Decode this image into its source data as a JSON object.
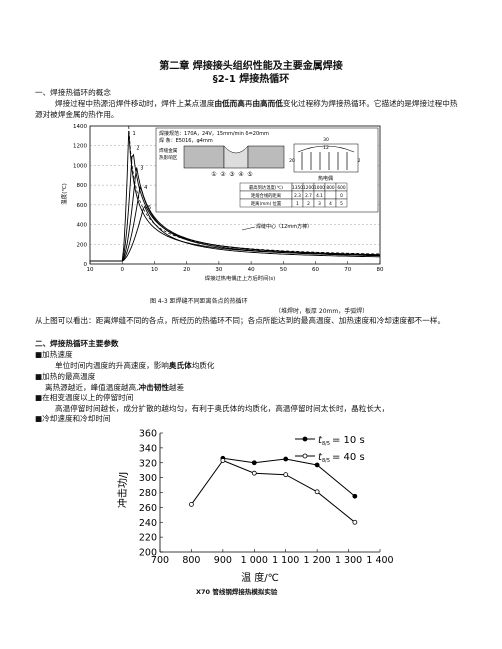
{
  "doc": {
    "chapter_title": "第二章 焊接接头组织性能及主要金属焊接",
    "section_title": "§2-1 焊接热循环",
    "h1": "一、焊接热循环的概念",
    "p1_pre": "焊接过程中热源沿焊件移动时，焊件上某点温度",
    "p1_b1": "由低而高",
    "p1_mid": "再",
    "p1_b2": "由高而低",
    "p1_post": "变化过程称为焊接热循环。它描述的是焊接过程中热源对被焊金属的热作用。",
    "fig1_caption": "图 4-3  距焊缝不同距离各点的热循环",
    "fig1_subcaption": "（堆焊时，板厚 20mm，手弧焊）",
    "p2": "从上图可以看出：距离焊缝不同的各点，所经历的热循环不同；各点所能达到的最高温度、加热速度和冷却速度都不一样。",
    "h2": "二、焊接热循环主要参数",
    "b1_head": "■加热速度",
    "b1_pre": "单位时间内温度的升高速度，影响",
    "b1_bold": "奥氏体",
    "b1_post": "均质化",
    "b2_head": "■加热的最高温度",
    "b2_pre": "离热源越近，峰值温度越高,",
    "b2_bold": "冲击韧性",
    "b2_post": "越差",
    "b3_head": "■在相变温度以上的停留时间",
    "b3_text": "高温停留时间越长，成分扩散的越均匀，有利于奥氏体的均质化，高温停留时间太长时，晶粒长大，",
    "b4_head": "■冷却速度和冷却时间",
    "fig2_caption": "X70 管线钢焊接热模拟实验"
  },
  "chart_top": {
    "ylabel": "温度(℃)",
    "xlabel": "焊接过热电偶正上方后时间(s)",
    "y_ticks": [
      "1400",
      "1200",
      "1000",
      "800",
      "600",
      "400",
      "200",
      "0"
    ],
    "x_ticks": [
      "10",
      "0",
      "10",
      "20",
      "30",
      "40",
      "50",
      "60",
      "70",
      "80"
    ],
    "curve_labels": [
      "1",
      "2",
      "3",
      "4",
      "5"
    ],
    "inset_lines": [
      "焊接规范：170A，24V，15mm/min  δ=20mm",
      "焊 条：E5016，φ4mm"
    ],
    "inset_left_labels": [
      "焊缝金属",
      "热影响区"
    ],
    "inset_dim_labels": [
      "30",
      "12",
      "20",
      "2"
    ],
    "inset_circle_labels": [
      "①",
      "②",
      "③",
      "④",
      "⑤"
    ],
    "inset_thermo_label": "热电偶",
    "table_header": [
      "最高到达温度(℃)",
      "1350",
      "1200",
      "1000",
      "800",
      "600"
    ],
    "table_row1": [
      "距熔合线的距离",
      "2.3",
      "2.7",
      "4.1",
      "",
      "0"
    ],
    "table_row2": [
      "距离(mm)  位置",
      "1",
      "2",
      "3",
      "4",
      "5"
    ],
    "dashed_label": "焊缝中心（12mm方棒）"
  },
  "chart_bottom": {
    "type": "line",
    "ylabel": "冲击功/J",
    "xlabel": "温  度/℃",
    "xlim": [
      700,
      1400
    ],
    "ylim": [
      200,
      360
    ],
    "x_ticks": [
      "700",
      "800",
      "900",
      "1 000",
      "1 100",
      "1 200",
      "1 300",
      "1 400"
    ],
    "y_ticks": [
      "360",
      "340",
      "320",
      "300",
      "280",
      "260",
      "240",
      "220",
      "200"
    ],
    "series": [
      {
        "name": "t8/5 = 10 s",
        "marker": "filled",
        "x": [
          900,
          1000,
          1100,
          1200,
          1320
        ],
        "y": [
          326,
          320,
          325,
          317,
          275
        ]
      },
      {
        "name": "t8/5 = 40 s",
        "marker": "open",
        "x": [
          800,
          900,
          1000,
          1100,
          1200,
          1320
        ],
        "y": [
          264,
          323,
          306,
          304,
          281,
          240
        ]
      }
    ],
    "legend_t": "t",
    "legend_sub": "8/5",
    "legend_10": "= 10 s",
    "legend_40": "= 40 s"
  }
}
